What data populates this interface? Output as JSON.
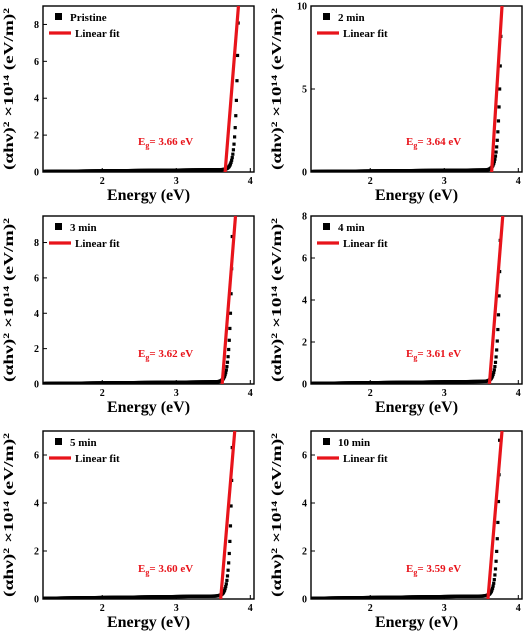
{
  "colors": {
    "data": "#000000",
    "fit": "#e8141b",
    "frame": "#000000"
  },
  "chart_data": [
    {
      "type": "scatter",
      "panel": "pristine",
      "xlabel": "Energy (eV)",
      "ylabel": "(αhν)² ×10¹⁴ (eV/m)²",
      "xlim": [
        1.2,
        4.05
      ],
      "ylim": [
        0,
        9
      ],
      "xticks": [
        "2",
        "3",
        "4"
      ],
      "xtick_values": [
        2,
        3,
        4
      ],
      "yticks": [
        "0",
        "2",
        "4",
        "6",
        "8"
      ],
      "ytick_values": [
        0,
        2,
        4,
        6,
        8
      ],
      "legend": [
        {
          "label": "Pristine",
          "kind": "marker"
        },
        {
          "label": "Linear fit",
          "kind": "line"
        }
      ],
      "band_gap": {
        "prefix": "E",
        "sub": "g",
        "value": "= 3.66 eV",
        "eg": 3.66
      },
      "curve": {
        "x0": 3.6,
        "x_end": 3.84,
        "y_end": 9.0,
        "k": 0.032
      },
      "fit": {
        "x": [
          3.66,
          3.84
        ],
        "y": [
          0,
          9.0
        ]
      }
    },
    {
      "type": "scatter",
      "panel": "2min",
      "xlabel": "Energy (eV)",
      "ylabel": "(αhν)² ×10¹⁴ (eV/m)²",
      "xlim": [
        1.2,
        4.05
      ],
      "ylim": [
        0,
        10
      ],
      "xticks": [
        "2",
        "3",
        "4"
      ],
      "xtick_values": [
        2,
        3,
        4
      ],
      "yticks": [
        "0",
        "5",
        "10"
      ],
      "ytick_values": [
        0,
        5,
        10
      ],
      "legend": [
        {
          "label": "2 min",
          "kind": "marker"
        },
        {
          "label": "Linear fit",
          "kind": "line"
        }
      ],
      "band_gap": {
        "prefix": "E",
        "sub": "g",
        "value": "= 3.64 eV",
        "eg": 3.64
      },
      "curve": {
        "x0": 3.57,
        "x_end": 3.77,
        "y_end": 9.7,
        "k": 0.032
      },
      "fit": {
        "x": [
          3.64,
          3.78
        ],
        "y": [
          0,
          10
        ]
      }
    },
    {
      "type": "scatter",
      "panel": "3min",
      "xlabel": "Energy (eV)",
      "ylabel": "(αhν)² ×10¹⁴ (eV/m)²",
      "xlim": [
        1.2,
        4.05
      ],
      "ylim": [
        0,
        9.5
      ],
      "xticks": [
        "2",
        "3",
        "4"
      ],
      "xtick_values": [
        2,
        3,
        4
      ],
      "yticks": [
        "0",
        "2",
        "4",
        "6",
        "8"
      ],
      "ytick_values": [
        0,
        2,
        4,
        6,
        8
      ],
      "legend": [
        {
          "label": "3 min",
          "kind": "marker"
        },
        {
          "label": "Linear fit",
          "kind": "line"
        }
      ],
      "band_gap": {
        "prefix": "E",
        "sub": "g",
        "value": "= 3.62 eV",
        "eg": 3.62
      },
      "curve": {
        "x0": 3.55,
        "x_end": 3.76,
        "y_end": 9.3,
        "k": 0.032
      },
      "fit": {
        "x": [
          3.62,
          3.8
        ],
        "y": [
          0,
          9.5
        ]
      }
    },
    {
      "type": "scatter",
      "panel": "4min",
      "xlabel": "Energy (eV)",
      "ylabel": "(αhν)² ×10¹⁴ (eV/m)²",
      "xlim": [
        1.2,
        4.05
      ],
      "ylim": [
        0,
        8
      ],
      "xticks": [
        "2",
        "3",
        "4"
      ],
      "xtick_values": [
        2,
        3,
        4
      ],
      "yticks": [
        "0",
        "2",
        "4",
        "6",
        "8"
      ],
      "ytick_values": [
        0,
        2,
        4,
        6,
        8
      ],
      "legend": [
        {
          "label": "4 min",
          "kind": "marker"
        },
        {
          "label": "Linear fit",
          "kind": "line"
        }
      ],
      "band_gap": {
        "prefix": "E",
        "sub": "g",
        "value": "= 3.61 eV",
        "eg": 3.61
      },
      "curve": {
        "x0": 3.54,
        "x_end": 3.76,
        "y_end": 7.6,
        "k": 0.032
      },
      "fit": {
        "x": [
          3.61,
          3.79
        ],
        "y": [
          0,
          8
        ]
      }
    },
    {
      "type": "scatter",
      "panel": "5min",
      "xlabel": "Energy (eV)",
      "ylabel": "(αhν)² ×10¹⁴ (eV/m)²",
      "xlim": [
        1.2,
        4.05
      ],
      "ylim": [
        0,
        7
      ],
      "xticks": [
        "2",
        "3",
        "4"
      ],
      "xtick_values": [
        2,
        3,
        4
      ],
      "yticks": [
        "0",
        "2",
        "4",
        "6"
      ],
      "ytick_values": [
        0,
        2,
        4,
        6
      ],
      "legend": [
        {
          "label": "5 min",
          "kind": "marker"
        },
        {
          "label": "Linear fit",
          "kind": "line"
        }
      ],
      "band_gap": {
        "prefix": "E",
        "sub": "g",
        "value": "= 3.60 eV",
        "eg": 3.6
      },
      "curve": {
        "x0": 3.53,
        "x_end": 3.76,
        "y_end": 7.0,
        "k": 0.032
      },
      "fit": {
        "x": [
          3.6,
          3.79
        ],
        "y": [
          0,
          7
        ]
      }
    },
    {
      "type": "scatter",
      "panel": "10min",
      "xlabel": "Energy (eV)",
      "ylabel": "(αhν)² ×10¹⁴ (eV/m)²",
      "xlim": [
        1.2,
        4.05
      ],
      "ylim": [
        0,
        7
      ],
      "xticks": [
        "2",
        "3",
        "4"
      ],
      "xtick_values": [
        2,
        3,
        4
      ],
      "yticks": [
        "0",
        "2",
        "4",
        "6"
      ],
      "ytick_values": [
        0,
        2,
        4,
        6
      ],
      "legend": [
        {
          "label": "10 min",
          "kind": "marker"
        },
        {
          "label": "Linear fit",
          "kind": "line"
        }
      ],
      "band_gap": {
        "prefix": "E",
        "sub": "g",
        "value": "= 3.59 eV",
        "eg": 3.59
      },
      "curve": {
        "x0": 3.52,
        "x_end": 3.75,
        "y_end": 6.9,
        "k": 0.032
      },
      "fit": {
        "x": [
          3.59,
          3.78
        ],
        "y": [
          0,
          7
        ]
      }
    }
  ]
}
